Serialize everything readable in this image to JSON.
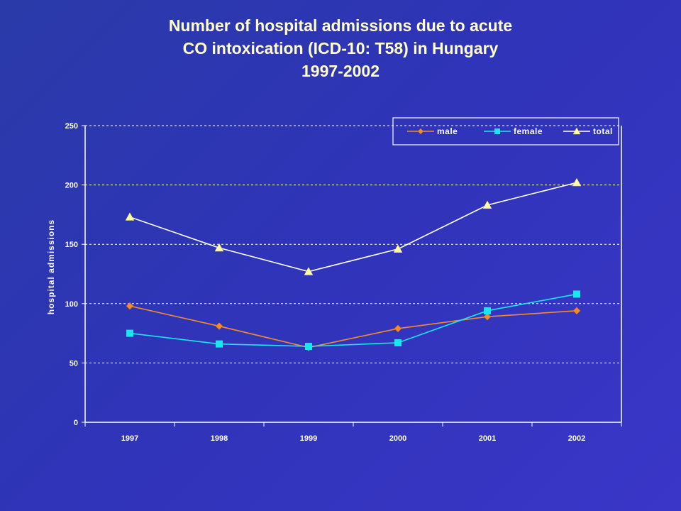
{
  "chart_data": {
    "type": "line",
    "title_lines": [
      "Number of hospital admissions due to acute",
      "CO intoxication (ICD-10: T58) in Hungary",
      "1997-2002"
    ],
    "ylabel": "hospital admissions",
    "xlabel": "",
    "categories": [
      "1997",
      "1998",
      "1999",
      "2000",
      "2001",
      "2002"
    ],
    "ylim": [
      0,
      250
    ],
    "yticks": [
      0,
      50,
      100,
      150,
      200,
      250
    ],
    "grid": "horizontal dashed",
    "legend_position": "top-right",
    "series": [
      {
        "name": "male",
        "values": [
          98,
          81,
          63,
          79,
          89,
          94
        ],
        "color": "#f58a2a",
        "marker": "diamond"
      },
      {
        "name": "female",
        "values": [
          75,
          66,
          64,
          67,
          94,
          108
        ],
        "color": "#19e6f0",
        "marker": "square"
      },
      {
        "name": "total",
        "values": [
          173,
          147,
          127,
          146,
          183,
          202
        ],
        "color": "#ffffff",
        "marker": "triangle"
      }
    ]
  },
  "colors": {
    "background": "#2f34b8",
    "title": "#ffffc8",
    "axis": "#ffffff",
    "marker_fill_total": "#ffffa0"
  }
}
